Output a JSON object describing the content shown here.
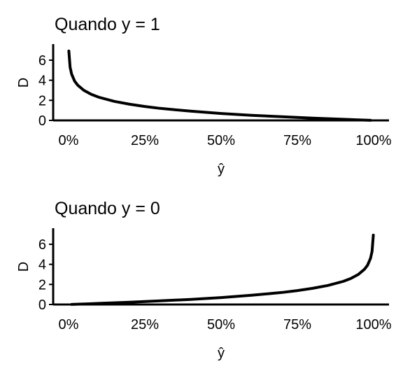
{
  "chart_data": [
    {
      "type": "line",
      "title": "Quando y = 1",
      "xlabel": "ŷ",
      "ylabel": "D",
      "xlim": [
        0,
        1
      ],
      "ylim": [
        0,
        7.6
      ],
      "xticks": [
        0,
        0.25,
        0.5,
        0.75,
        1
      ],
      "xtick_labels": [
        "0%",
        "25%",
        "50%",
        "75%",
        "100%"
      ],
      "yticks": [
        0,
        2,
        4,
        6
      ],
      "ytick_labels": [
        "0",
        "2",
        "4",
        "6"
      ],
      "series": [
        {
          "x": [
            0.001,
            0.005,
            0.01,
            0.02,
            0.03,
            0.05,
            0.075,
            0.1,
            0.15,
            0.2,
            0.25,
            0.3,
            0.4,
            0.5,
            0.6,
            0.7,
            0.8,
            0.9,
            0.95,
            0.99
          ],
          "y": [
            6.91,
            5.3,
            4.61,
            3.91,
            3.51,
            3.0,
            2.59,
            2.3,
            1.9,
            1.61,
            1.39,
            1.2,
            0.92,
            0.69,
            0.51,
            0.36,
            0.22,
            0.11,
            0.05,
            0.01
          ]
        }
      ]
    },
    {
      "type": "line",
      "title": "Quando y = 0",
      "xlabel": "ŷ",
      "ylabel": "D",
      "xlim": [
        0,
        1
      ],
      "ylim": [
        0,
        7.6
      ],
      "xticks": [
        0,
        0.25,
        0.5,
        0.75,
        1
      ],
      "xtick_labels": [
        "0%",
        "25%",
        "50%",
        "75%",
        "100%"
      ],
      "yticks": [
        0,
        2,
        4,
        6
      ],
      "ytick_labels": [
        "0",
        "2",
        "4",
        "6"
      ],
      "series": [
        {
          "x": [
            0.01,
            0.05,
            0.1,
            0.2,
            0.3,
            0.4,
            0.5,
            0.6,
            0.7,
            0.75,
            0.8,
            0.85,
            0.9,
            0.925,
            0.95,
            0.97,
            0.98,
            0.99,
            0.995,
            0.999
          ],
          "y": [
            0.01,
            0.05,
            0.11,
            0.22,
            0.36,
            0.51,
            0.69,
            0.92,
            1.2,
            1.39,
            1.61,
            1.9,
            2.3,
            2.59,
            3.0,
            3.51,
            3.91,
            4.61,
            5.3,
            6.91
          ]
        }
      ]
    }
  ]
}
